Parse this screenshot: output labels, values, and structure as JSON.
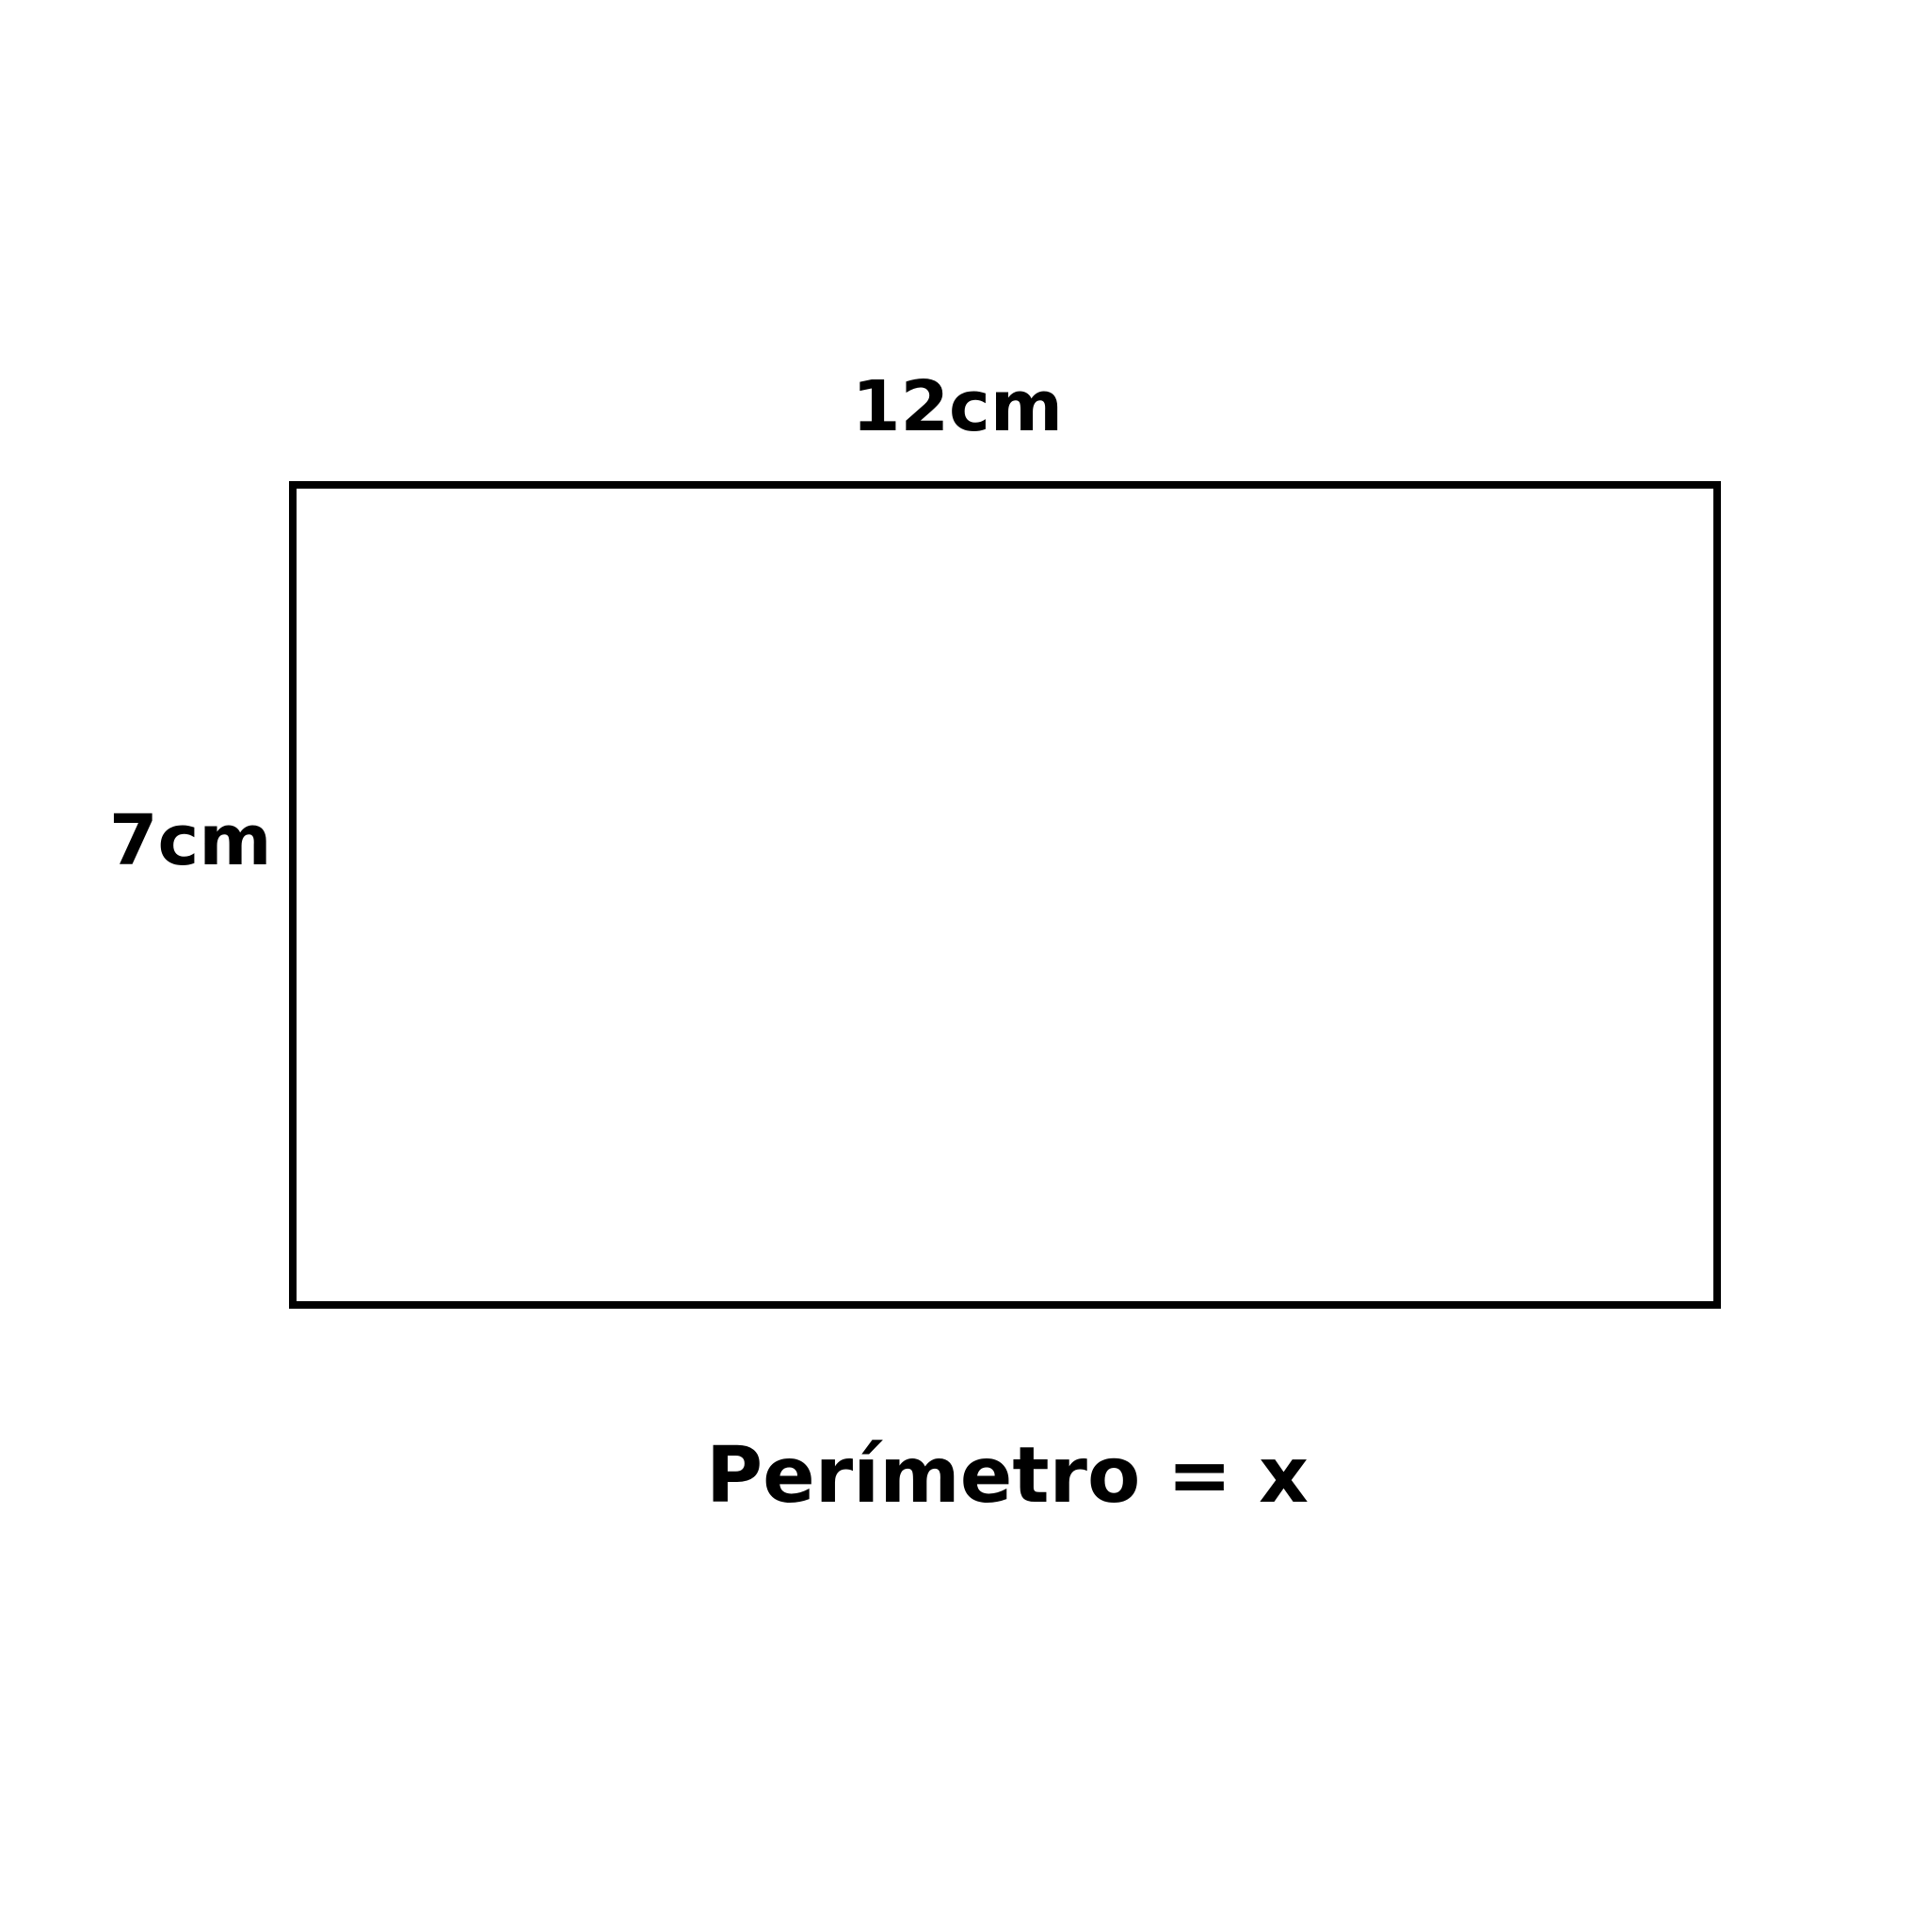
{
  "diagram": {
    "shape": "rectangle",
    "width_label": "12cm",
    "height_label": "7cm",
    "formula_label": "Perímetro = x",
    "colors": {
      "stroke": "#000000",
      "background": "#ffffff",
      "text": "#000000"
    }
  }
}
